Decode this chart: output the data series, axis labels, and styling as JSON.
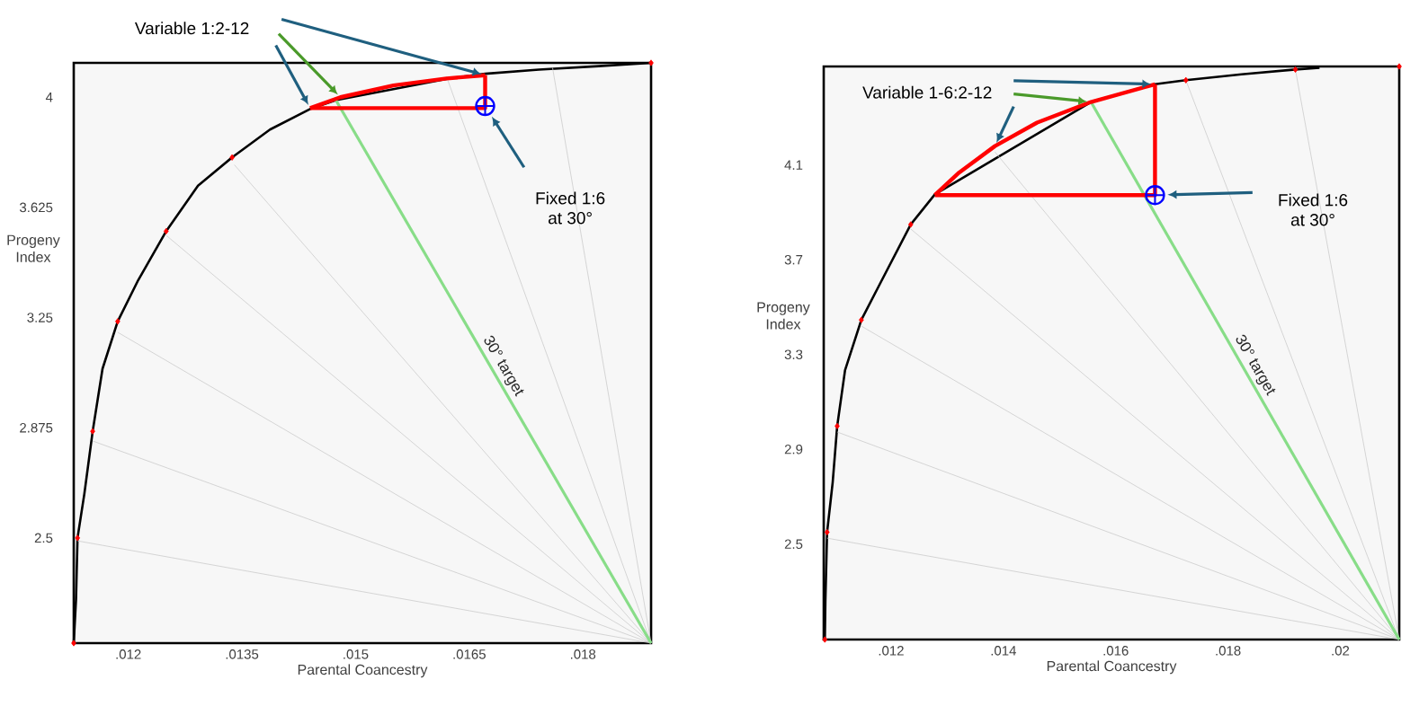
{
  "chart_data": [
    {
      "type": "line",
      "xlabel": "Parental Coancestry",
      "ylabel": "Progeny Index",
      "xlim": [
        0.01128,
        0.0189
      ],
      "ylim": [
        2.142,
        4.117
      ],
      "xticks": [
        {
          "value": 0.012,
          "label": ".012"
        },
        {
          "value": 0.0135,
          "label": ".0135"
        },
        {
          "value": 0.015,
          "label": ".015"
        },
        {
          "value": 0.0165,
          "label": ".0165"
        },
        {
          "value": 0.018,
          "label": ".018"
        }
      ],
      "yticks": [
        2.5,
        2.875,
        3.25,
        3.625,
        4
      ],
      "annotations": [
        "Variable 1:2-12",
        "Fixed 1:6\nat 30°",
        "30° target"
      ],
      "series": [
        {
          "color": "#000000",
          "x": [
            0.01128,
            0.01131,
            0.01133,
            0.01142,
            0.01153,
            0.01166,
            0.01186,
            0.01213,
            0.0125,
            0.01292,
            0.01337,
            0.01387,
            0.0144,
            0.01474,
            0.01545,
            0.01624,
            0.01671,
            0.01742,
            0.01821,
            0.0189
          ],
          "values": [
            2.142,
            2.29,
            2.5,
            2.65,
            2.863,
            3.076,
            3.237,
            3.377,
            3.544,
            3.699,
            3.795,
            3.89,
            3.96,
            3.99,
            null,
            4.064,
            4.08,
            4.094,
            4.106,
            4.117
          ]
        },
        {
          "type": "line",
          "color": "#cccccc",
          "x": [
            0.0189,
            0.01133
          ],
          "values": [
            2.142,
            2.49
          ]
        },
        {
          "type": "line",
          "color": "#cccccc",
          "x": [
            0.0189,
            0.01153
          ],
          "values": [
            2.142,
            2.83
          ]
        },
        {
          "type": "line",
          "color": "#cccccc",
          "x": [
            0.0189,
            0.01186
          ],
          "values": [
            2.142,
            3.2
          ]
        },
        {
          "type": "line",
          "color": "#cccccc",
          "x": [
            0.0189,
            0.0125
          ],
          "values": [
            2.142,
            3.53
          ]
        },
        {
          "type": "line",
          "color": "#cccccc",
          "x": [
            0.0189,
            0.0134
          ],
          "values": [
            2.142,
            3.77
          ]
        },
        {
          "type": "line",
          "color": "#cccccc",
          "x": [
            0.0189,
            0.0162
          ],
          "values": [
            2.142,
            4.07
          ]
        },
        {
          "type": "line",
          "color": "#cccccc",
          "x": [
            0.0189,
            0.0176
          ],
          "values": [
            2.142,
            4.1
          ]
        },
        {
          "color": "#88dd88",
          "x": [
            0.0189,
            0.01474
          ],
          "values": [
            2.142,
            3.99
          ]
        },
        {
          "color": "#ff0000",
          "x": [
            0.0144,
            0.0148,
            0.0155,
            0.0162,
            0.01671
          ],
          "values": [
            3.963,
            4.0,
            4.04,
            4.064,
            4.075
          ]
        },
        {
          "color": "#ff0000",
          "x": [
            0.0144,
            0.01671,
            0.01671
          ],
          "values": [
            3.963,
            3.963,
            4.075
          ]
        },
        {
          "type": "scatter",
          "color": "#ff0000",
          "marker": "diamond",
          "x": [
            0.01128,
            0.01133,
            0.01153,
            0.01186,
            0.0125,
            0.01337,
            0.0189
          ],
          "values": [
            2.142,
            2.5,
            2.863,
            3.237,
            3.544,
            3.795,
            4.117
          ]
        },
        {
          "type": "scatter",
          "color": "#0000ff",
          "marker": "circle",
          "x": [
            0.01671
          ],
          "values": [
            3.97
          ]
        }
      ]
    },
    {
      "type": "line",
      "xlabel": "Parental Coancestry",
      "ylabel": "Progeny Index",
      "xlim": [
        0.0108,
        0.02105
      ],
      "ylim": [
        2.097,
        4.516
      ],
      "xticks": [
        {
          "value": 0.012,
          "label": ".012"
        },
        {
          "value": 0.014,
          "label": ".014"
        },
        {
          "value": 0.016,
          "label": ".016"
        },
        {
          "value": 0.018,
          "label": ".018"
        },
        {
          "value": 0.02,
          "label": ".02"
        }
      ],
      "yticks": [
        2.5,
        2.9,
        3.3,
        3.7,
        4.1
      ],
      "annotations": [
        "Variable 1-6:2-12",
        "Fixed 1:6\nat 30°",
        "30° target"
      ],
      "series": [
        {
          "color": "#000000",
          "x": [
            0.01082,
            0.01083,
            0.01086,
            0.01096,
            0.01104,
            0.01118,
            0.01147,
            0.01182,
            0.01235,
            0.01278,
            0.01321,
            0.01385,
            0.0146,
            0.01556,
            0.0167,
            0.01725,
            0.01824,
            0.0192,
            0.01963
          ],
          "values": [
            2.097,
            2.264,
            2.55,
            2.761,
            2.998,
            3.234,
            3.446,
            3.607,
            3.849,
            3.976,
            null,
            null,
            null,
            4.366,
            4.441,
            4.458,
            4.483,
            4.503,
            4.51
          ]
        },
        {
          "type": "line",
          "color": "#cccccc",
          "x": [
            0.02105,
            0.01086
          ],
          "values": [
            2.097,
            2.525
          ]
        },
        {
          "type": "line",
          "color": "#cccccc",
          "x": [
            0.02105,
            0.01104
          ],
          "values": [
            2.097,
            2.973
          ]
        },
        {
          "type": "line",
          "color": "#cccccc",
          "x": [
            0.02105,
            0.01147
          ],
          "values": [
            2.097,
            3.42
          ]
        },
        {
          "type": "line",
          "color": "#cccccc",
          "x": [
            0.02105,
            0.01235
          ],
          "values": [
            2.097,
            3.83
          ]
        },
        {
          "type": "line",
          "color": "#cccccc",
          "x": [
            0.02105,
            0.01385
          ],
          "values": [
            2.097,
            4.155
          ]
        },
        {
          "type": "line",
          "color": "#cccccc",
          "x": [
            0.02105,
            0.01725
          ],
          "values": [
            2.097,
            4.458
          ]
        },
        {
          "type": "line",
          "color": "#cccccc",
          "x": [
            0.02105,
            0.0192
          ],
          "values": [
            2.097,
            4.503
          ]
        },
        {
          "color": "#88dd88",
          "x": [
            0.02105,
            0.01556
          ],
          "values": [
            2.097,
            4.366
          ]
        },
        {
          "color": "#ff0000",
          "x": [
            0.01278,
            0.01321,
            0.01385,
            0.0146,
            0.01556,
            0.0167
          ],
          "values": [
            3.973,
            4.068,
            4.18,
            4.279,
            4.366,
            4.441
          ]
        },
        {
          "color": "#ff0000",
          "x": [
            0.01278,
            0.0167,
            0.0167
          ],
          "values": [
            3.973,
            3.973,
            4.441
          ]
        },
        {
          "type": "scatter",
          "color": "#ff0000",
          "marker": "diamond",
          "x": [
            0.01082,
            0.01086,
            0.01104,
            0.01147,
            0.01235,
            0.01725,
            0.0192,
            0.02105
          ],
          "values": [
            2.097,
            2.55,
            2.998,
            3.446,
            3.849,
            4.458,
            4.503,
            4.516
          ]
        },
        {
          "type": "scatter",
          "color": "#0000ff",
          "marker": "circle",
          "x": [
            0.0167
          ],
          "values": [
            3.973
          ]
        }
      ]
    }
  ]
}
